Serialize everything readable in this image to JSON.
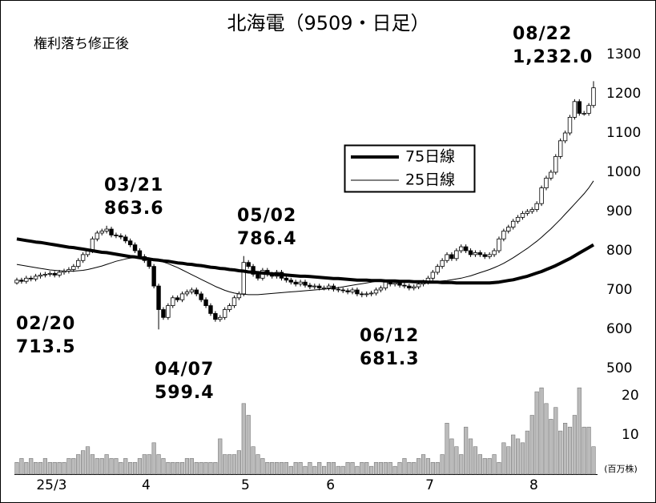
{
  "chart_data": {
    "type": "candlestick",
    "title": "北海電（9509・日足）",
    "subtitle": "権利落ち修正後",
    "categories": [
      null,
      null,
      null,
      null,
      null,
      null,
      "25/3",
      null,
      null,
      null,
      null,
      null,
      null,
      null,
      null,
      null,
      null,
      null,
      null,
      null,
      null,
      null,
      null,
      null,
      null,
      null,
      "4",
      null,
      null,
      null,
      null,
      null,
      null,
      null,
      null,
      null,
      null,
      null,
      null,
      null,
      null,
      null,
      null,
      null,
      null,
      null,
      null,
      "5",
      null,
      null,
      null,
      null,
      null,
      null,
      null,
      null,
      null,
      null,
      null,
      null,
      null,
      null,
      null,
      null,
      null,
      "6",
      null,
      null,
      null,
      null,
      null,
      null,
      null,
      null,
      null,
      null,
      null,
      null,
      null,
      null,
      null,
      null,
      null,
      null,
      null,
      null,
      "7",
      null,
      null,
      null,
      null,
      null,
      null,
      null,
      null,
      null,
      null,
      null,
      null,
      null,
      null,
      null,
      null,
      null,
      null,
      null,
      null,
      null,
      "8",
      null,
      null,
      null,
      null,
      null,
      null,
      null,
      null,
      null,
      null,
      null,
      null,
      null,
      null
    ],
    "open": [
      718,
      725,
      722,
      730,
      728,
      735,
      738,
      740,
      742,
      738,
      745,
      748,
      752,
      760,
      775,
      790,
      800,
      830,
      845,
      850,
      855,
      840,
      838,
      835,
      825,
      815,
      800,
      785,
      775,
      760,
      710,
      650,
      630,
      660,
      680,
      675,
      690,
      695,
      700,
      690,
      675,
      660,
      640,
      625,
      630,
      650,
      660,
      680,
      690,
      770,
      760,
      740,
      730,
      750,
      740,
      735,
      745,
      730,
      725,
      720,
      715,
      720,
      712,
      708,
      710,
      705,
      705,
      710,
      702,
      700,
      698,
      695,
      700,
      690,
      688,
      690,
      692,
      700,
      705,
      720,
      715,
      718,
      712,
      710,
      705,
      708,
      715,
      720,
      730,
      745,
      760,
      775,
      790,
      780,
      800,
      810,
      800,
      790,
      795,
      790,
      785,
      790,
      800,
      830,
      850,
      860,
      875,
      885,
      895,
      900,
      905,
      920,
      960,
      985,
      1000,
      1040,
      1080,
      1100,
      1140,
      1180,
      1150,
      1150,
      1170
    ],
    "high": [
      731,
      731,
      736,
      736,
      741,
      744,
      746,
      748,
      748,
      751,
      754,
      758,
      766,
      781,
      796,
      806,
      836,
      851,
      856,
      863.6,
      861,
      846,
      844,
      841,
      831,
      821,
      806,
      791,
      781,
      766,
      716,
      656,
      666,
      686,
      686,
      696,
      701,
      706,
      706,
      696,
      681,
      666,
      646,
      636,
      656,
      666,
      686,
      696,
      786.4,
      776,
      766,
      746,
      756,
      756,
      746,
      751,
      751,
      736,
      731,
      726,
      726,
      726,
      718,
      716,
      716,
      711,
      716,
      716,
      708,
      706,
      704,
      706,
      706,
      696,
      696,
      698,
      706,
      711,
      726,
      726,
      724,
      724,
      718,
      716,
      714,
      721,
      726,
      736,
      751,
      766,
      781,
      796,
      796,
      806,
      816,
      816,
      806,
      801,
      801,
      796,
      796,
      806,
      836,
      856,
      866,
      881,
      891,
      901,
      906,
      911,
      926,
      966,
      991,
      1006,
      1046,
      1086,
      1106,
      1146,
      1186,
      1186,
      1156,
      1176,
      1232.0
    ],
    "low": [
      713.5,
      716,
      716,
      722,
      722,
      729,
      732,
      734,
      732,
      732,
      739,
      742,
      746,
      754,
      769,
      784,
      794,
      824,
      839,
      844,
      834,
      832,
      829,
      819,
      809,
      794,
      779,
      769,
      754,
      704,
      599.4,
      624,
      624,
      654,
      669,
      669,
      684,
      689,
      684,
      669,
      654,
      634,
      619,
      619,
      624,
      644,
      654,
      674,
      684,
      754,
      734,
      724,
      724,
      734,
      729,
      729,
      724,
      719,
      714,
      709,
      709,
      706,
      702,
      702,
      699,
      699,
      699,
      696,
      694,
      692,
      689,
      689,
      684,
      681.3,
      682,
      684,
      686,
      694,
      699,
      709,
      709,
      706,
      704,
      699,
      699,
      702,
      709,
      714,
      724,
      739,
      754,
      769,
      774,
      774,
      794,
      794,
      784,
      784,
      784,
      779,
      779,
      784,
      794,
      824,
      844,
      854,
      869,
      879,
      889,
      894,
      899,
      914,
      954,
      979,
      994,
      1034,
      1074,
      1094,
      1134,
      1144,
      1144,
      1144,
      1164
    ],
    "close": [
      725,
      722,
      730,
      728,
      735,
      738,
      740,
      742,
      738,
      745,
      748,
      752,
      760,
      775,
      790,
      800,
      830,
      845,
      850,
      855,
      840,
      838,
      835,
      825,
      815,
      800,
      785,
      775,
      760,
      710,
      650,
      630,
      660,
      680,
      675,
      690,
      695,
      700,
      690,
      675,
      660,
      640,
      625,
      630,
      650,
      660,
      680,
      690,
      770,
      760,
      740,
      730,
      750,
      740,
      735,
      745,
      730,
      725,
      720,
      715,
      720,
      712,
      708,
      710,
      705,
      705,
      710,
      702,
      700,
      698,
      695,
      700,
      690,
      688,
      690,
      692,
      700,
      705,
      720,
      715,
      718,
      712,
      710,
      705,
      708,
      715,
      720,
      730,
      745,
      760,
      775,
      790,
      780,
      800,
      810,
      800,
      790,
      795,
      790,
      785,
      790,
      800,
      830,
      850,
      860,
      875,
      885,
      895,
      900,
      905,
      920,
      960,
      985,
      1000,
      1040,
      1080,
      1100,
      1140,
      1180,
      1150,
      1150,
      1170,
      1215
    ],
    "ylim": [
      500,
      1300
    ],
    "yticks": [
      500,
      600,
      700,
      800,
      900,
      1000,
      1100,
      1200,
      1300
    ],
    "series": [
      {
        "name": "75日線",
        "color": "#000000",
        "line_width": 4,
        "values": [
          830,
          828,
          826,
          824,
          822,
          821,
          819,
          817,
          815,
          813,
          811,
          809,
          808,
          806,
          804,
          802,
          800,
          798,
          796,
          795,
          793,
          791,
          789,
          787,
          785,
          784,
          782,
          780,
          779,
          777,
          776,
          774,
          773,
          771,
          769,
          768,
          766,
          765,
          763,
          762,
          760,
          758,
          757,
          755,
          754,
          752,
          751,
          749,
          748,
          746,
          745,
          744,
          743,
          742,
          741,
          740,
          739,
          738,
          737,
          736,
          735,
          735,
          734,
          733,
          732,
          731,
          730,
          729,
          729,
          728,
          727,
          726,
          725,
          725,
          725,
          724,
          724,
          724,
          723,
          723,
          723,
          722,
          722,
          722,
          721,
          721,
          721,
          720,
          720,
          720,
          719,
          719,
          719,
          718,
          718,
          718,
          718,
          718,
          718,
          718,
          718,
          719,
          720,
          722,
          724,
          726,
          729,
          732,
          735,
          739,
          743,
          747,
          752,
          757,
          762,
          768,
          774,
          780,
          787,
          794,
          801,
          808,
          815
        ]
      },
      {
        "name": "25日線",
        "color": "#000000",
        "line_width": 1,
        "values": [
          765,
          763,
          761,
          759,
          757,
          755,
          753,
          751,
          750,
          749,
          748,
          748,
          748,
          749,
          750,
          752,
          755,
          758,
          761,
          765,
          769,
          773,
          776,
          779,
          781,
          782,
          783,
          782,
          780,
          778,
          775,
          771,
          767,
          762,
          757,
          751,
          745,
          739,
          733,
          727,
          721,
          715,
          709,
          704,
          699,
          695,
          692,
          690,
          689,
          688,
          688,
          688,
          689,
          690,
          691,
          692,
          693,
          694,
          695,
          696,
          697,
          698,
          699,
          700,
          701,
          702,
          703,
          704,
          706,
          708,
          710,
          712,
          714,
          716,
          718,
          720,
          722,
          723,
          724,
          725,
          725,
          724,
          723,
          722,
          721,
          720,
          720,
          720,
          721,
          722,
          723,
          724,
          726,
          728,
          730,
          733,
          736,
          740,
          744,
          748,
          752,
          757,
          762,
          768,
          775,
          782,
          790,
          798,
          806,
          815,
          824,
          834,
          845,
          856,
          868,
          880,
          893,
          906,
          919,
          932,
          945,
          960,
          978
        ]
      }
    ],
    "volume": {
      "unit": "(百万株)",
      "color": "#bbbbbb",
      "ylim": [
        0,
        25
      ],
      "yticks": [
        10,
        20
      ],
      "values": [
        3,
        4,
        3,
        4,
        3,
        3,
        4,
        3,
        3,
        3,
        3,
        4,
        4,
        5,
        6,
        7,
        5,
        4,
        4,
        5,
        4,
        4,
        3,
        4,
        3,
        3,
        4,
        5,
        5,
        8,
        5,
        4,
        3,
        3,
        3,
        3,
        4,
        4,
        3,
        3,
        3,
        3,
        3,
        9,
        5,
        5,
        5,
        6,
        18,
        15,
        7,
        5,
        4,
        3,
        3,
        3,
        3,
        3,
        2,
        3,
        3,
        2,
        3,
        2,
        3,
        2,
        3,
        3,
        2,
        2,
        3,
        3,
        2,
        3,
        3,
        2,
        3,
        3,
        3,
        3,
        2,
        3,
        4,
        3,
        3,
        4,
        5,
        4,
        3,
        3,
        5,
        13,
        9,
        7,
        5,
        12,
        9,
        7,
        5,
        4,
        4,
        5,
        3,
        8,
        7,
        10,
        9,
        8,
        11,
        15,
        21,
        22,
        18,
        14,
        17,
        11,
        13,
        12,
        15,
        22,
        12,
        12,
        7
      ]
    },
    "annotations": [
      {
        "date": "02/20",
        "value": 713.5
      },
      {
        "date": "03/21",
        "value": 863.6
      },
      {
        "date": "04/07",
        "value": 599.4
      },
      {
        "date": "05/02",
        "value": 786.4
      },
      {
        "date": "06/12",
        "value": 681.3
      },
      {
        "date": "08/22",
        "value": {
          "value": 1232.0,
          "label": "1,232.0"
        }
      }
    ]
  }
}
